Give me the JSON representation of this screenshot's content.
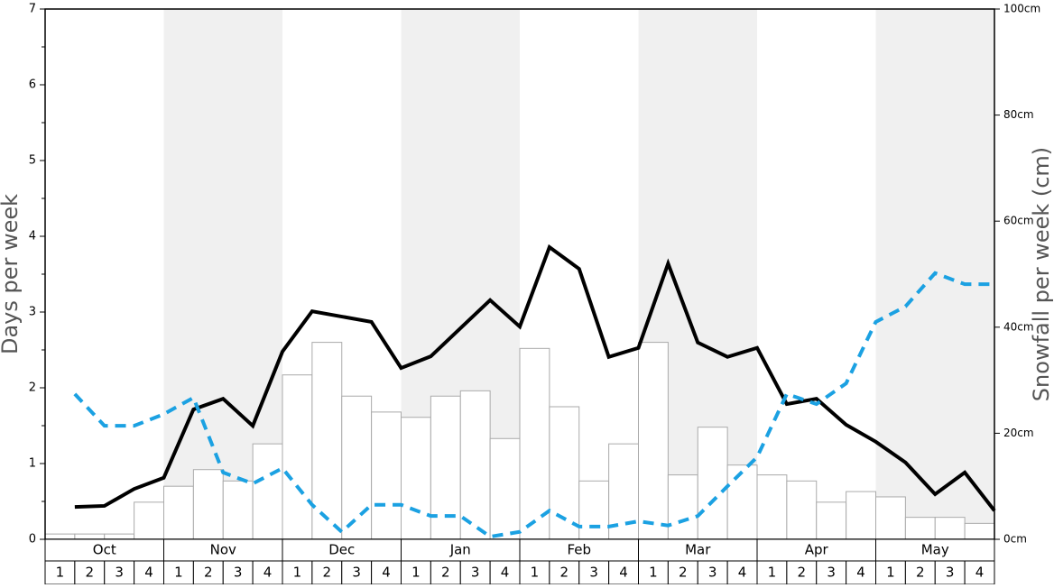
{
  "chart_data": {
    "type": "combo",
    "y_label": "Days per week",
    "y2_label": "Snowfall per week (cm)",
    "months": [
      "Oct",
      "Nov",
      "Dec",
      "Jan",
      "Feb",
      "Mar",
      "Apr",
      "May"
    ],
    "categories": [
      "1",
      "2",
      "3",
      "4",
      "1",
      "2",
      "3",
      "4",
      "1",
      "2",
      "3",
      "4",
      "1",
      "2",
      "3",
      "4",
      "1",
      "2",
      "3",
      "4",
      "1",
      "2",
      "3",
      "4",
      "1",
      "2",
      "3",
      "4",
      "1",
      "2",
      "3",
      "4"
    ],
    "ylim": [
      0,
      7
    ],
    "yticks": [
      0,
      1,
      2,
      3,
      4,
      5,
      6,
      7
    ],
    "y2lim": [
      0,
      100
    ],
    "y2ticks": [
      {
        "value": 0,
        "label": "0cm"
      },
      {
        "value": 20,
        "label": "20cm"
      },
      {
        "value": 40,
        "label": "40cm"
      },
      {
        "value": 60,
        "label": "60cm"
      },
      {
        "value": 80,
        "label": "80cm"
      },
      {
        "value": 100,
        "label": "100cm"
      }
    ],
    "series": [
      {
        "type": "bar",
        "color": "#ffffff",
        "values": [
          0.07,
          0.07,
          0.07,
          0.49,
          0.7,
          0.92,
          0.77,
          1.26,
          2.17,
          2.6,
          1.89,
          1.68,
          1.61,
          1.89,
          1.96,
          1.33,
          2.52,
          1.75,
          0.77,
          1.26,
          2.6,
          0.85,
          1.48,
          0.98,
          0.85,
          0.77,
          0.49,
          0.63,
          0.56,
          0.29,
          0.29,
          0.21
        ]
      },
      {
        "type": "line",
        "color": "#000000",
        "axis": "y2",
        "dashed": false,
        "values": [
          6.1,
          6.3,
          9.5,
          11.6,
          24.5,
          26.5,
          21.4,
          35.4,
          43.0,
          42.0,
          41.0,
          32.3,
          34.5,
          39.8,
          45.1,
          40.1,
          55.1,
          51.0,
          34.4,
          36.1,
          52.0,
          37.1,
          34.4,
          36.1,
          25.5,
          26.5,
          21.6,
          18.4,
          14.5,
          8.5,
          12.6,
          5.4
        ]
      },
      {
        "type": "line",
        "color": "#1ba1e2",
        "axis": "y2",
        "dashed": true,
        "values": [
          27.4,
          21.4,
          21.4,
          23.6,
          26.7,
          12.6,
          10.5,
          13.4,
          6.5,
          1.4,
          6.5,
          6.5,
          4.4,
          4.4,
          0.5,
          1.4,
          5.4,
          2.4,
          2.4,
          3.4,
          2.6,
          4.4,
          10.0,
          15.5,
          27.4,
          25.5,
          29.4,
          41.0,
          43.9,
          50.2,
          48.1,
          48.1
        ]
      }
    ]
  }
}
